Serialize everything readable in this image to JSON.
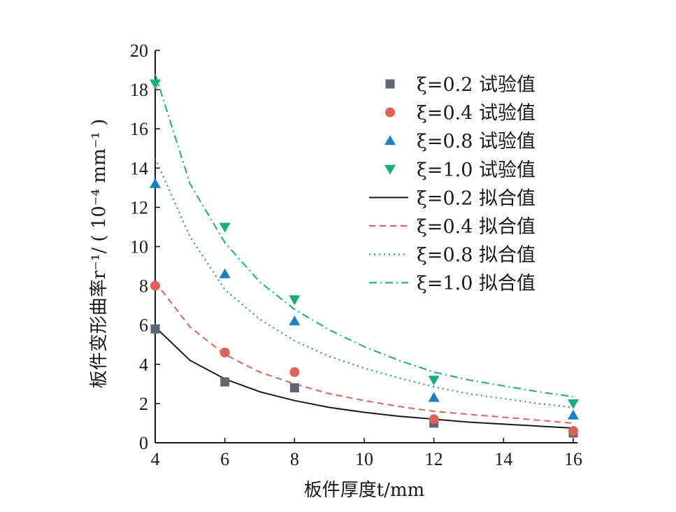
{
  "chart_data": {
    "type": "scatter",
    "xlabel": "板件厚度t/mm",
    "ylabel": "板件变形曲率r⁻¹/ ( 10⁻⁴ mm⁻¹ )",
    "xlim": [
      4,
      16
    ],
    "ylim": [
      0,
      20
    ],
    "xticks": [
      4,
      6,
      8,
      10,
      12,
      14,
      16
    ],
    "yticks": [
      0,
      2,
      4,
      6,
      8,
      10,
      12,
      14,
      16,
      18,
      20
    ],
    "grid": false,
    "legend_position": "top-right",
    "scatter_series": [
      {
        "name": "ξ=0.2 试验值",
        "marker": "square",
        "color": "#5d6670",
        "x": [
          4,
          6,
          8,
          12,
          16
        ],
        "y": [
          5.8,
          3.1,
          2.8,
          1.0,
          0.5
        ]
      },
      {
        "name": "ξ=0.4 试验值",
        "marker": "circle",
        "color": "#e0605a",
        "x": [
          4,
          6,
          8,
          12,
          16
        ],
        "y": [
          8.0,
          4.6,
          3.6,
          1.2,
          0.6
        ]
      },
      {
        "name": "ξ=0.8 试验值",
        "marker": "triangle-up",
        "color": "#1a7fc4",
        "x": [
          4,
          6,
          8,
          12,
          16
        ],
        "y": [
          13.2,
          8.6,
          6.2,
          2.3,
          1.4
        ]
      },
      {
        "name": "ξ=1.0 试验值",
        "marker": "triangle-down",
        "color": "#1aab7e",
        "x": [
          4,
          6,
          8,
          12,
          16
        ],
        "y": [
          18.3,
          11.0,
          7.3,
          3.2,
          2.0
        ]
      }
    ],
    "fit_series": [
      {
        "name": "ξ=0.2 拟合值",
        "line_style": "solid",
        "color": "#1a1a1a",
        "x": [
          4,
          5,
          6,
          7,
          8,
          9,
          10,
          11,
          12,
          13,
          14,
          15,
          16
        ],
        "y": [
          5.9,
          4.2,
          3.25,
          2.6,
          2.15,
          1.8,
          1.55,
          1.35,
          1.2,
          1.05,
          0.95,
          0.85,
          0.75
        ]
      },
      {
        "name": "ξ=0.4 拟合值",
        "line_style": "dashed",
        "color": "#e0605a",
        "x": [
          4,
          5,
          6,
          7,
          8,
          9,
          10,
          11,
          12,
          13,
          14,
          15,
          16
        ],
        "y": [
          8.2,
          5.9,
          4.5,
          3.6,
          3.0,
          2.5,
          2.15,
          1.85,
          1.6,
          1.45,
          1.3,
          1.15,
          1.0
        ]
      },
      {
        "name": "ξ=0.8 拟合值",
        "line_style": "dotted",
        "color": "#1a7fc4",
        "x": [
          4,
          5,
          6,
          7,
          8,
          9,
          10,
          11,
          12,
          13,
          14,
          15,
          16
        ],
        "y": [
          14.5,
          10.5,
          7.8,
          6.3,
          5.2,
          4.4,
          3.8,
          3.3,
          2.85,
          2.5,
          2.25,
          2.0,
          1.8
        ]
      },
      {
        "name": "ξ=1.0 拟合值",
        "line_style": "dash-dot",
        "color": "#1aab7e",
        "x": [
          4,
          5,
          6,
          7,
          8,
          9,
          10,
          11,
          12,
          13,
          14,
          15,
          16
        ],
        "y": [
          18.8,
          13.2,
          10.2,
          8.2,
          6.8,
          5.75,
          4.9,
          4.2,
          3.6,
          3.2,
          2.9,
          2.6,
          2.35
        ]
      }
    ]
  }
}
